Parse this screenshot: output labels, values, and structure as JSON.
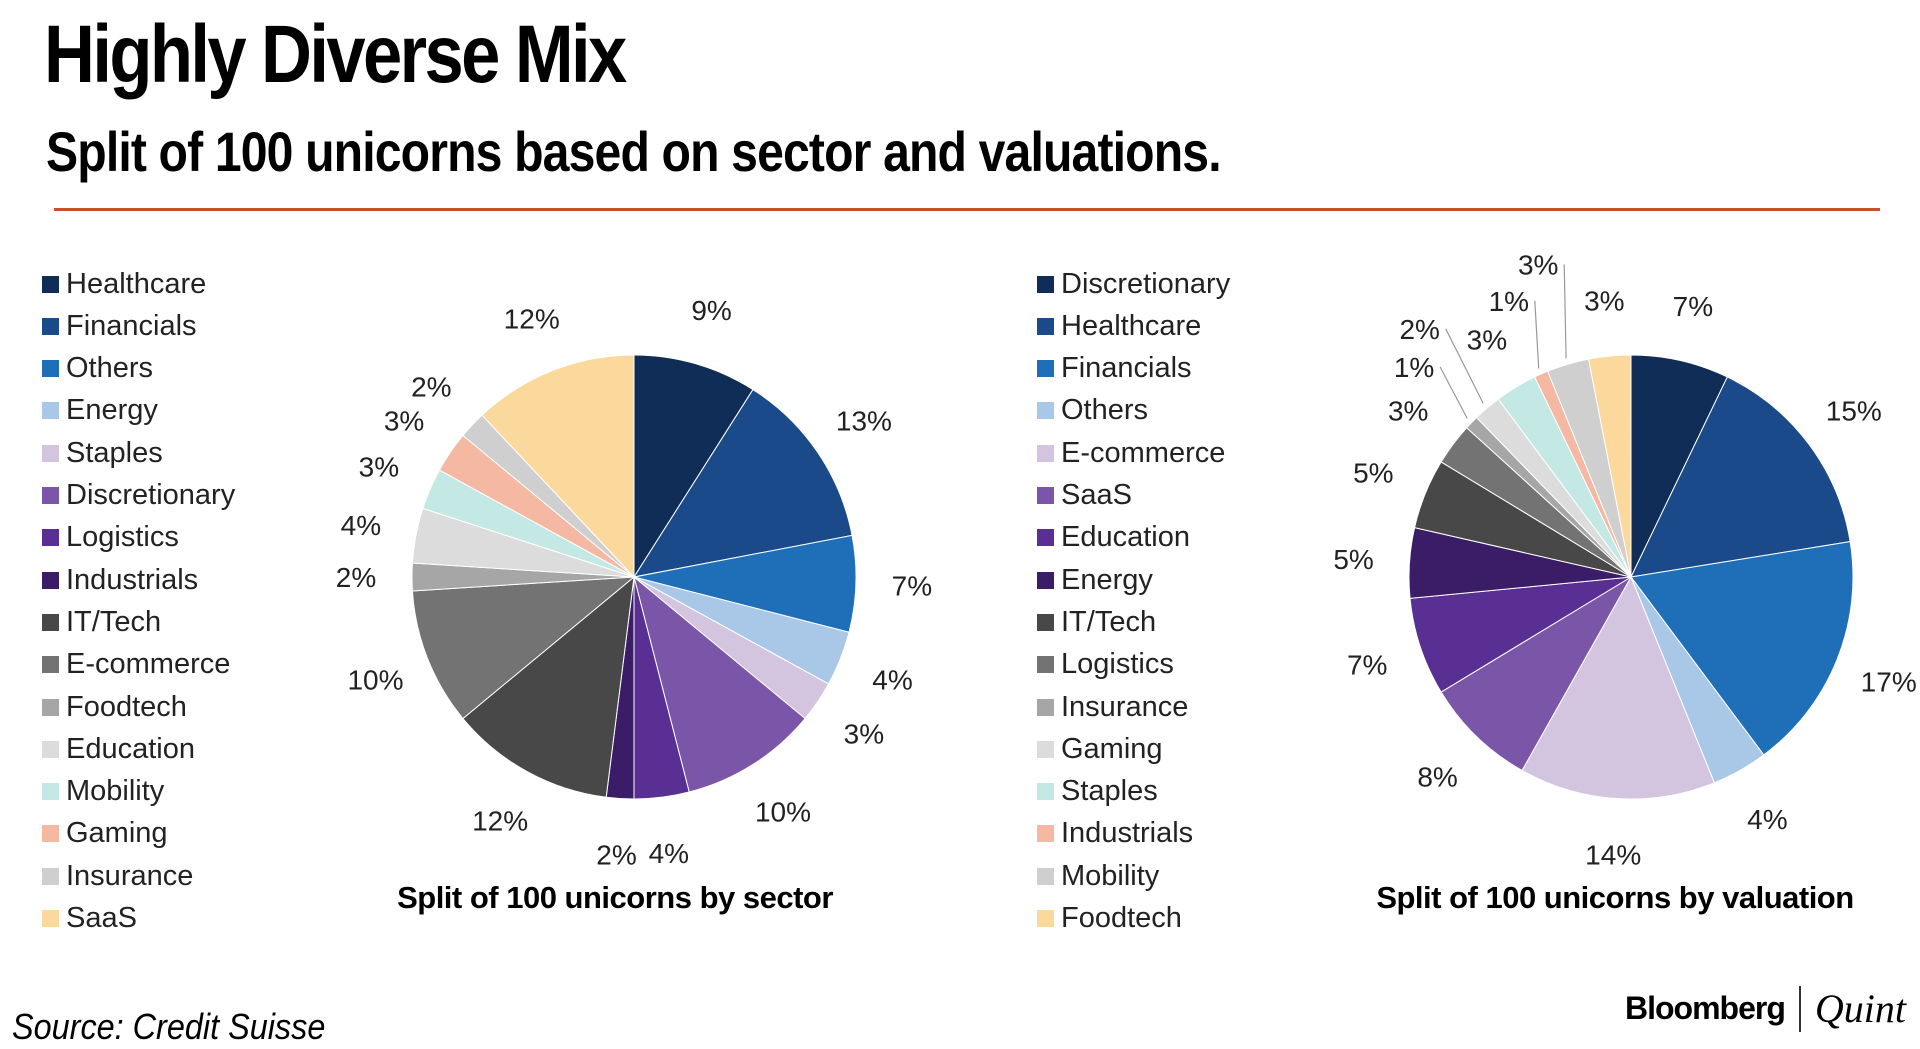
{
  "header": {
    "title": "Highly Diverse Mix",
    "subtitle": "Split of 100 unicorns based on sector and valuations."
  },
  "footer": {
    "source": "Source: Credit Suisse",
    "brand_primary": "Bloomberg",
    "brand_secondary": "Quint"
  },
  "colors": {
    "accent_rule": "#c8502a"
  },
  "chart_data": [
    {
      "type": "pie",
      "title": "Split of 100 unicorns by sector",
      "categories": [
        "Healthcare",
        "Financials",
        "Others",
        "Energy",
        "Staples",
        "Discretionary",
        "Logistics",
        "Industrials",
        "IT/Tech",
        "E-commerce",
        "Foodtech",
        "Education",
        "Mobility",
        "Gaming",
        "Insurance",
        "SaaS"
      ],
      "values": [
        9,
        13,
        7,
        4,
        3,
        10,
        4,
        2,
        12,
        10,
        2,
        4,
        3,
        3,
        2,
        12
      ],
      "labels": [
        "9%",
        "13%",
        "7%",
        "4%",
        "3%",
        "10%",
        "4%",
        "2%",
        "12%",
        "10%",
        "2%",
        "4%",
        "3%",
        "3%",
        "2%",
        "12%"
      ],
      "colors": [
        "#0f2d57",
        "#1a4a8a",
        "#1f6fb8",
        "#a9c8e8",
        "#d3c5e0",
        "#7b56a8",
        "#5a2f93",
        "#3a1d66",
        "#484848",
        "#737373",
        "#a6a6a6",
        "#dcdcdc",
        "#c4e8e4",
        "#f5b8a2",
        "#cfcfcf",
        "#fbd89b"
      ],
      "legend_position": "left"
    },
    {
      "type": "pie",
      "title": "Split of 100 unicorns by valuation",
      "categories": [
        "Discretionary",
        "Healthcare",
        "Financials",
        "Others",
        "E-commerce",
        "SaaS",
        "Education",
        "Energy",
        "IT/Tech",
        "Logistics",
        "Insurance",
        "Gaming",
        "Staples",
        "Industrials",
        "Mobility",
        "Foodtech"
      ],
      "values": [
        7,
        15,
        17,
        4,
        14,
        8,
        7,
        5,
        5,
        3,
        1,
        2,
        3,
        1,
        3,
        3
      ],
      "labels": [
        "7%",
        "15%",
        "17%",
        "4%",
        "14%",
        "8%",
        "7%",
        "5%",
        "5%",
        "3%",
        "1%",
        "2%",
        "3%",
        "1%",
        "3%",
        "3%"
      ],
      "colors": [
        "#0f2d57",
        "#1a4a8a",
        "#1f6fb8",
        "#a9c8e8",
        "#d3c5e0",
        "#7b56a8",
        "#5a2f93",
        "#3a1d66",
        "#484848",
        "#737373",
        "#a6a6a6",
        "#dcdcdc",
        "#c4e8e4",
        "#f5b8a2",
        "#cfcfcf",
        "#fbd89b"
      ],
      "legend_position": "left"
    }
  ]
}
